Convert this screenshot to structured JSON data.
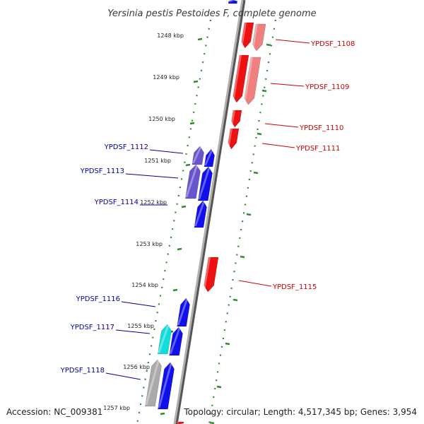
{
  "title": "Yersinia pestis Pestoides F, complete genome",
  "footer": {
    "accession": "Accession: NC_009381",
    "topology": "Topology: circular; Length: 4,517,345 bp; Genes: 3,954"
  },
  "colors": {
    "backbone": "#8a8a8a",
    "tick": "#2e8b2e",
    "forward_gene": "#ee1111",
    "forward_gene_light": "#f08080",
    "reverse_gene": "#1010ee",
    "reverse_gene_light": "#6655cc",
    "reverse_gene_cyan": "#11dddd",
    "reverse_gene_gray": "#aaaaaa",
    "forward_label": "#cc0000",
    "reverse_label": "#000099"
  },
  "kbp_ticks": [
    {
      "label": "1248 kbp",
      "kbp": 1248
    },
    {
      "label": "1249 kbp",
      "kbp": 1249
    },
    {
      "label": "1250 kbp",
      "kbp": 1250
    },
    {
      "label": "1251 kbp",
      "kbp": 1251
    },
    {
      "label": "1252 kbp",
      "kbp": 1252
    },
    {
      "label": "1253 kbp",
      "kbp": 1253
    },
    {
      "label": "1254 kbp",
      "kbp": 1254
    },
    {
      "label": "1255 kbp",
      "kbp": 1255
    },
    {
      "label": "1256 kbp",
      "kbp": 1256
    },
    {
      "label": "1257 kbp",
      "kbp": 1257
    }
  ],
  "forward_labels": [
    "YPDSF_1108",
    "YPDSF_1109",
    "YPDSF_1110",
    "YPDSF_1111",
    "YPDSF_1115"
  ],
  "reverse_labels": [
    "YPDSF_1112",
    "YPDSF_1113",
    "YPDSF_1114",
    "YPDSF_1116",
    "YPDSF_1117",
    "YPDSF_1118"
  ]
}
